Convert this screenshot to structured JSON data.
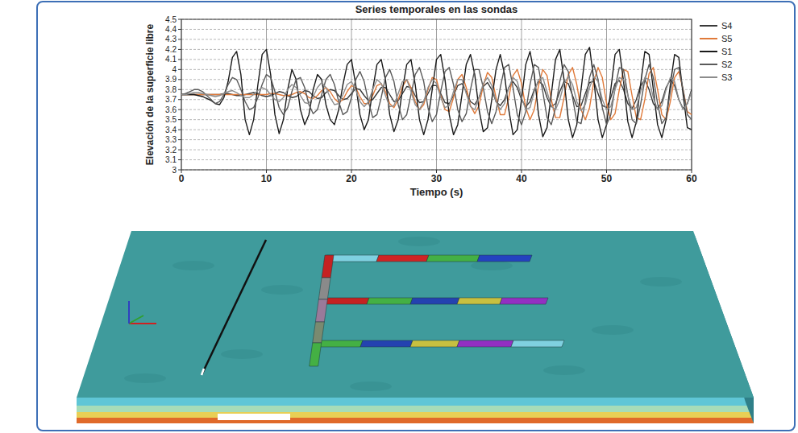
{
  "chart_data": {
    "type": "line",
    "title": "Series temporales en las sondas",
    "x_label": "Tiempo (s)",
    "y_label": "Elevación de la superficie libre",
    "xlim": [
      0,
      60
    ],
    "xticks": [
      0,
      10,
      20,
      30,
      40,
      50,
      60
    ],
    "ylim": [
      3,
      4.5
    ],
    "yticks": [
      3,
      3.1,
      3.2,
      3.3,
      3.4,
      3.5,
      3.6,
      3.7,
      3.8,
      3.9,
      4,
      4.1,
      4.2,
      4.3,
      4.4,
      4.5
    ],
    "grid": true,
    "legend": "right",
    "x": [
      0,
      0.5,
      1,
      1.5,
      2,
      2.5,
      3,
      3.5,
      4,
      4.5,
      5,
      5.5,
      6,
      6.5,
      7,
      7.5,
      8,
      8.5,
      9,
      9.5,
      10,
      10.5,
      11,
      11.5,
      12,
      12.5,
      13,
      13.5,
      14,
      14.5,
      15,
      15.5,
      16,
      16.5,
      17,
      17.5,
      18,
      18.5,
      19,
      19.5,
      20,
      20.5,
      21,
      21.5,
      22,
      22.5,
      23,
      23.5,
      24,
      24.5,
      25,
      25.5,
      26,
      26.5,
      27,
      27.5,
      28,
      28.5,
      29,
      29.5,
      30,
      30.5,
      31,
      31.5,
      32,
      32.5,
      33,
      33.5,
      34,
      34.5,
      35,
      35.5,
      36,
      36.5,
      37,
      37.5,
      38,
      38.5,
      39,
      39.5,
      40,
      40.5,
      41,
      41.5,
      42,
      42.5,
      43,
      43.5,
      44,
      44.5,
      45,
      45.5,
      46,
      46.5,
      47,
      47.5,
      48,
      48.5,
      49,
      49.5,
      50,
      50.5,
      51,
      51.5,
      52,
      52.5,
      53,
      53.5,
      54,
      54.5,
      55,
      55.5,
      56,
      56.5,
      57,
      57.5,
      58,
      58.5,
      59,
      59.5,
      60
    ],
    "series": [
      {
        "name": "S4",
        "color": "#3a3a3a",
        "values": [
          3.75,
          3.75,
          3.75,
          3.75,
          3.75,
          3.75,
          3.75,
          3.75,
          3.75,
          3.75,
          3.76,
          3.76,
          3.75,
          3.74,
          3.74,
          3.75,
          3.76,
          3.77,
          3.76,
          3.74,
          3.73,
          3.74,
          3.76,
          3.78,
          3.77,
          3.74,
          3.72,
          3.73,
          3.76,
          3.79,
          3.78,
          3.74,
          3.71,
          3.72,
          3.77,
          3.8,
          3.79,
          3.74,
          3.7,
          3.71,
          3.76,
          3.81,
          3.8,
          3.74,
          3.69,
          3.7,
          3.76,
          3.82,
          3.82,
          3.75,
          3.68,
          3.69,
          3.76,
          3.83,
          3.82,
          3.74,
          3.67,
          3.68,
          3.76,
          3.84,
          3.84,
          3.76,
          3.67,
          3.66,
          3.74,
          3.84,
          3.86,
          3.78,
          3.68,
          3.65,
          3.72,
          3.83,
          3.87,
          3.8,
          3.68,
          3.64,
          3.7,
          3.82,
          3.88,
          3.82,
          3.7,
          3.63,
          3.68,
          3.8,
          3.88,
          3.85,
          3.72,
          3.63,
          3.66,
          3.78,
          3.88,
          3.86,
          3.74,
          3.63,
          3.64,
          3.76,
          3.87,
          3.88,
          3.76,
          3.64,
          3.62,
          3.72,
          3.86,
          3.89,
          3.8,
          3.66,
          3.61,
          3.7,
          3.84,
          3.9,
          3.8,
          3.66,
          3.61,
          3.68,
          3.82,
          3.9,
          3.84,
          3.7,
          3.61,
          3.66,
          3.8
        ]
      },
      {
        "name": "S5",
        "color": "#e07a3a",
        "values": [
          3.75,
          3.75,
          3.75,
          3.75,
          3.75,
          3.75,
          3.75,
          3.75,
          3.75,
          3.75,
          3.75,
          3.75,
          3.75,
          3.75,
          3.75,
          3.75,
          3.75,
          3.75,
          3.75,
          3.75,
          3.75,
          3.76,
          3.76,
          3.75,
          3.74,
          3.74,
          3.75,
          3.77,
          3.78,
          3.76,
          3.72,
          3.71,
          3.74,
          3.79,
          3.82,
          3.78,
          3.71,
          3.67,
          3.7,
          3.78,
          3.84,
          3.82,
          3.73,
          3.66,
          3.66,
          3.74,
          3.84,
          3.86,
          3.78,
          3.66,
          3.62,
          3.7,
          3.83,
          3.9,
          3.82,
          3.68,
          3.6,
          3.65,
          3.8,
          3.92,
          3.9,
          3.74,
          3.6,
          3.58,
          3.72,
          3.9,
          3.95,
          3.82,
          3.64,
          3.56,
          3.64,
          3.84,
          3.97,
          3.92,
          3.72,
          3.55,
          3.55,
          3.72,
          3.94,
          4.0,
          3.86,
          3.62,
          3.5,
          3.6,
          3.84,
          4.0,
          3.94,
          3.7,
          3.52,
          3.52,
          3.72,
          3.95,
          4.02,
          3.85,
          3.6,
          3.5,
          3.62,
          3.88,
          4.02,
          3.92,
          3.66,
          3.5,
          3.56,
          3.8,
          4.0,
          3.98,
          3.74,
          3.52,
          3.5,
          3.7,
          3.96,
          4.02,
          3.8,
          3.55,
          3.5,
          3.68,
          3.92,
          3.98,
          3.8,
          3.58,
          3.55
        ]
      },
      {
        "name": "S1",
        "color": "#1a1a1a",
        "values": [
          3.75,
          3.75,
          3.75,
          3.75,
          3.74,
          3.73,
          3.71,
          3.69,
          3.66,
          3.65,
          3.72,
          3.88,
          4.12,
          4.18,
          3.95,
          3.5,
          3.35,
          3.5,
          3.85,
          4.15,
          4.2,
          3.95,
          3.55,
          3.36,
          3.5,
          3.8,
          4.0,
          3.9,
          3.6,
          3.45,
          3.55,
          3.8,
          3.95,
          3.9,
          3.65,
          3.5,
          3.45,
          3.6,
          3.85,
          4.05,
          4.1,
          3.85,
          3.55,
          3.4,
          3.5,
          3.8,
          4.05,
          4.1,
          3.9,
          3.55,
          3.38,
          3.5,
          3.8,
          4.05,
          4.1,
          3.85,
          3.5,
          3.35,
          3.5,
          3.8,
          4.1,
          4.15,
          3.9,
          3.55,
          3.35,
          3.45,
          3.75,
          4.05,
          4.15,
          3.95,
          3.6,
          3.38,
          3.42,
          3.7,
          4.0,
          4.15,
          3.95,
          3.6,
          3.35,
          3.4,
          3.7,
          4.05,
          4.18,
          3.95,
          3.55,
          3.33,
          3.42,
          3.75,
          4.1,
          4.2,
          3.9,
          3.5,
          3.32,
          3.45,
          3.8,
          4.15,
          4.22,
          3.9,
          3.5,
          3.32,
          3.45,
          3.8,
          4.15,
          4.2,
          3.88,
          3.48,
          3.32,
          3.48,
          3.85,
          4.18,
          4.15,
          3.8,
          3.45,
          3.32,
          3.5,
          3.85,
          4.15,
          4.12,
          3.75,
          3.42,
          3.4
        ]
      },
      {
        "name": "S2",
        "color": "#5a5a5a",
        "values": [
          3.75,
          3.76,
          3.78,
          3.8,
          3.8,
          3.78,
          3.74,
          3.7,
          3.66,
          3.68,
          3.75,
          3.85,
          3.92,
          3.9,
          3.8,
          3.68,
          3.6,
          3.62,
          3.72,
          3.85,
          3.95,
          3.92,
          3.78,
          3.62,
          3.55,
          3.62,
          3.78,
          3.9,
          3.92,
          3.82,
          3.65,
          3.56,
          3.6,
          3.75,
          3.9,
          3.95,
          3.85,
          3.68,
          3.55,
          3.58,
          3.72,
          3.9,
          3.98,
          3.88,
          3.68,
          3.52,
          3.55,
          3.72,
          3.92,
          4.0,
          3.88,
          3.65,
          3.5,
          3.55,
          3.75,
          3.95,
          4.02,
          3.88,
          3.62,
          3.48,
          3.55,
          3.78,
          3.98,
          4.02,
          3.85,
          3.6,
          3.48,
          3.56,
          3.8,
          4.0,
          4.0,
          3.82,
          3.58,
          3.46,
          3.58,
          3.82,
          4.02,
          4.05,
          3.82,
          3.55,
          3.45,
          3.58,
          3.85,
          4.05,
          4.02,
          3.78,
          3.52,
          3.45,
          3.62,
          3.88,
          4.05,
          3.98,
          3.72,
          3.48,
          3.46,
          3.68,
          3.92,
          4.05,
          3.9,
          3.62,
          3.45,
          3.55,
          3.82,
          4.02,
          4.0,
          3.75,
          3.5,
          3.46,
          3.65,
          3.9,
          4.05,
          3.92,
          3.66,
          3.46,
          3.52,
          3.78,
          4.0,
          4.02,
          3.8,
          3.55,
          3.5
        ]
      },
      {
        "name": "S3",
        "color": "#8c8c8c",
        "values": [
          3.75,
          3.75,
          3.76,
          3.77,
          3.77,
          3.76,
          3.75,
          3.74,
          3.73,
          3.74,
          3.76,
          3.78,
          3.79,
          3.77,
          3.74,
          3.72,
          3.72,
          3.75,
          3.79,
          3.82,
          3.8,
          3.75,
          3.7,
          3.68,
          3.72,
          3.8,
          3.85,
          3.82,
          3.74,
          3.67,
          3.66,
          3.73,
          3.82,
          3.87,
          3.82,
          3.72,
          3.65,
          3.66,
          3.75,
          3.85,
          3.88,
          3.8,
          3.68,
          3.63,
          3.68,
          3.8,
          3.9,
          3.86,
          3.74,
          3.63,
          3.64,
          3.76,
          3.88,
          3.9,
          3.78,
          3.65,
          3.6,
          3.68,
          3.82,
          3.9,
          3.86,
          3.72,
          3.62,
          3.64,
          3.78,
          3.9,
          3.9,
          3.76,
          3.63,
          3.6,
          3.72,
          3.86,
          3.92,
          3.84,
          3.68,
          3.6,
          3.66,
          3.82,
          3.92,
          3.88,
          3.72,
          3.6,
          3.62,
          3.78,
          3.9,
          3.92,
          3.78,
          3.63,
          3.6,
          3.7,
          3.86,
          3.93,
          3.85,
          3.68,
          3.59,
          3.65,
          3.82,
          3.93,
          3.88,
          3.7,
          3.6,
          3.63,
          3.8,
          3.92,
          3.9,
          3.74,
          3.6,
          3.62,
          3.78,
          3.92,
          3.9,
          3.72,
          3.6,
          3.64,
          3.8,
          3.92,
          3.88,
          3.7,
          3.6,
          3.66,
          3.78
        ]
      }
    ]
  }
}
